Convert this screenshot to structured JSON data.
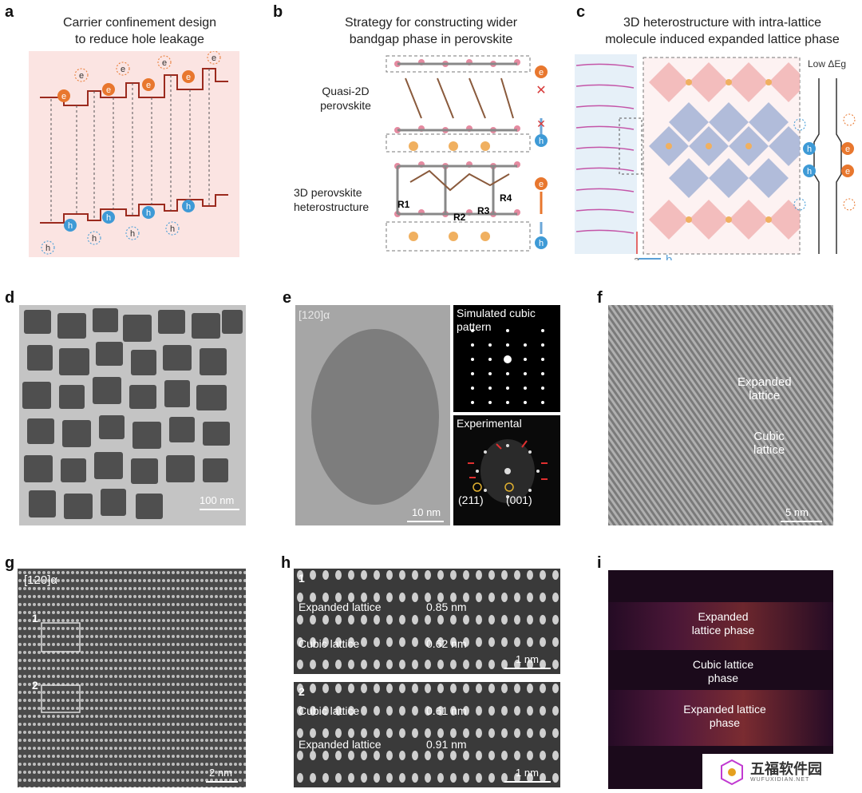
{
  "panels": {
    "a": {
      "label": "a",
      "title_line1": "Carrier confinement design",
      "title_line2": "to reduce hole leakage",
      "electron_symbol": "e",
      "hole_symbol": "h"
    },
    "b": {
      "label": "b",
      "title_line1": "Strategy for constructing wider",
      "title_line2": "bandgap phase in perovskite",
      "upper_label_line1": "Quasi-2D",
      "upper_label_line2": "perovskite",
      "lower_label_line1": "3D perovskite",
      "lower_label_line2": "heterostructure",
      "r_labels": [
        "R1",
        "R2",
        "R3",
        "R4"
      ],
      "electron_symbol": "e",
      "hole_symbol": "h"
    },
    "c": {
      "label": "c",
      "title_line1": "3D heterostructure with intra-lattice",
      "title_line2": "molecule induced expanded lattice phase",
      "energy_label": "Low ΔEg",
      "axis_a": "a",
      "axis_b": "b",
      "electron_symbol": "e",
      "hole_symbol": "h"
    },
    "d": {
      "label": "d",
      "scale": "100 nm"
    },
    "e": {
      "label": "e",
      "zone_axis": "[120]α",
      "scale": "10 nm",
      "sim_label_line1": "Simulated cubic",
      "sim_label_line2": "pattern",
      "exp_label": "Experimental",
      "spot1": "(211)",
      "spot2": "(001)"
    },
    "f": {
      "label": "f",
      "text1_line1": "Expanded",
      "text1_line2": "lattice",
      "text2_line1": "Cubic",
      "text2_line2": "lattice",
      "scale": "5 nm"
    },
    "g": {
      "label": "g",
      "zone_axis": "[120]α",
      "box1": "1",
      "box2": "2",
      "scale": "2 nm"
    },
    "h": {
      "label": "h",
      "top": {
        "index": "1",
        "row1_name": "Expanded lattice",
        "row1_value": "0.85 nm",
        "row2_name": "Cubic lattice",
        "row2_value": "0.62 nm",
        "scale": "1 nm"
      },
      "bottom": {
        "index": "2",
        "row1_name": "Cubic lattice",
        "row1_value": "0.61 nm",
        "row2_name": "Expanded lattice",
        "row2_value": "0.91 nm",
        "scale": "1 nm"
      }
    },
    "i": {
      "label": "i",
      "text1_line1": "Expanded",
      "text1_line2": "lattice phase",
      "text2_line1": "Cubic lattice",
      "text2_line2": "phase",
      "text3_line1": "Expanded lattice",
      "text3_line2": "phase"
    }
  },
  "watermark": {
    "cn": "五福软件园",
    "en": "WUFUXIDIAN.NET"
  },
  "colors": {
    "electron": "#e8772e",
    "hole": "#3e9ad6",
    "band": "#9b2a1e",
    "panel_a_bg": "#fbe4e2",
    "octahedron_pink": "#f2b4b4",
    "octahedron_blue": "#a9b7d8"
  }
}
